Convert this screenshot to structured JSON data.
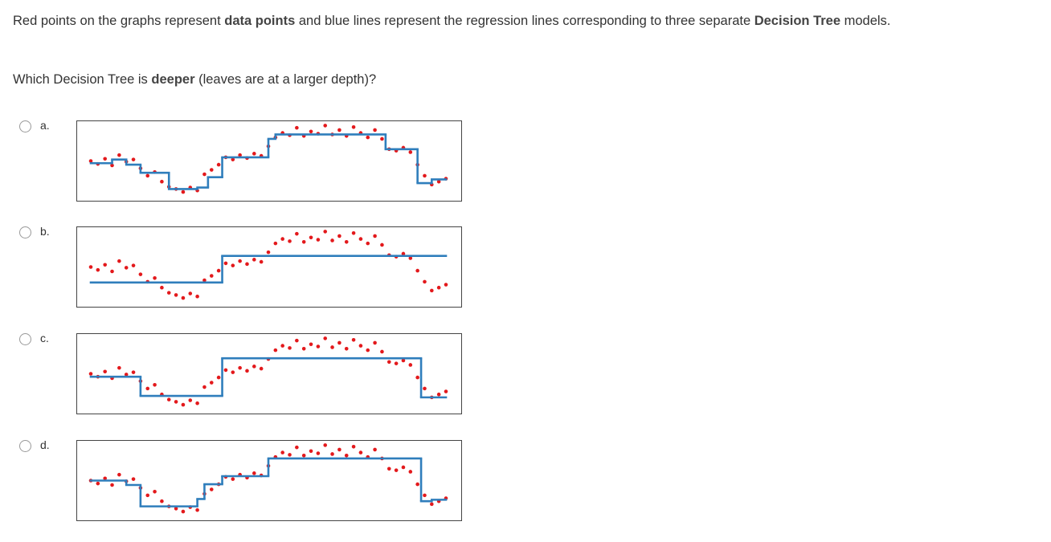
{
  "intro": {
    "parts": [
      "Red points on the graphs represent ",
      "data points",
      " and blue lines represent the regression lines corresponding to three separate ",
      "Decision Tree",
      " models."
    ]
  },
  "question": {
    "parts": [
      "Which Decision Tree is ",
      "deeper",
      " (leaves are at a larger depth)?"
    ]
  },
  "plots": {
    "xlim": [
      0,
      100
    ],
    "ylim": [
      -5,
      105
    ],
    "point_color": "#e3191c",
    "line_color": "#2f7ebc",
    "points": {
      "x": [
        0,
        2,
        4,
        6,
        8,
        10,
        12,
        14,
        16,
        18,
        20,
        22,
        24,
        26,
        28,
        30,
        32,
        34,
        36,
        38,
        40,
        42,
        44,
        46,
        48,
        50,
        52,
        54,
        56,
        58,
        60,
        62,
        64,
        66,
        68,
        70,
        72,
        74,
        76,
        78,
        80,
        82,
        84,
        86,
        88,
        90,
        92,
        94,
        96,
        98,
        100
      ],
      "y": [
        50,
        46,
        53,
        44,
        58,
        49,
        52,
        40,
        30,
        35,
        22,
        15,
        12,
        8,
        14,
        10,
        32,
        38,
        45,
        55,
        52,
        58,
        54,
        60,
        57,
        70,
        82,
        88,
        85,
        95,
        84,
        90,
        87,
        98,
        86,
        92,
        84,
        96,
        88,
        82,
        92,
        80,
        66,
        64,
        68,
        62,
        45,
        30,
        18,
        22,
        26
      ]
    },
    "options": [
      {
        "label": "a.",
        "edges": [
          0,
          6,
          10,
          14,
          22,
          30,
          33,
          37,
          50,
          52,
          83,
          92,
          96,
          100
        ],
        "values": [
          47,
          52,
          45,
          34,
          12,
          14,
          28,
          55,
          80,
          86,
          66,
          20,
          25
        ]
      },
      {
        "label": "b.",
        "edges": [
          0,
          37,
          100
        ],
        "values": [
          29,
          65
        ]
      },
      {
        "label": "c.",
        "edges": [
          0,
          14,
          37,
          93,
          100
        ],
        "values": [
          46,
          20,
          71,
          18
        ]
      },
      {
        "label": "d.",
        "edges": [
          0,
          10,
          14,
          30,
          32,
          37,
          50,
          93,
          96,
          100
        ],
        "values": [
          50,
          44,
          15,
          25,
          45,
          56,
          80,
          22,
          24
        ]
      }
    ]
  }
}
